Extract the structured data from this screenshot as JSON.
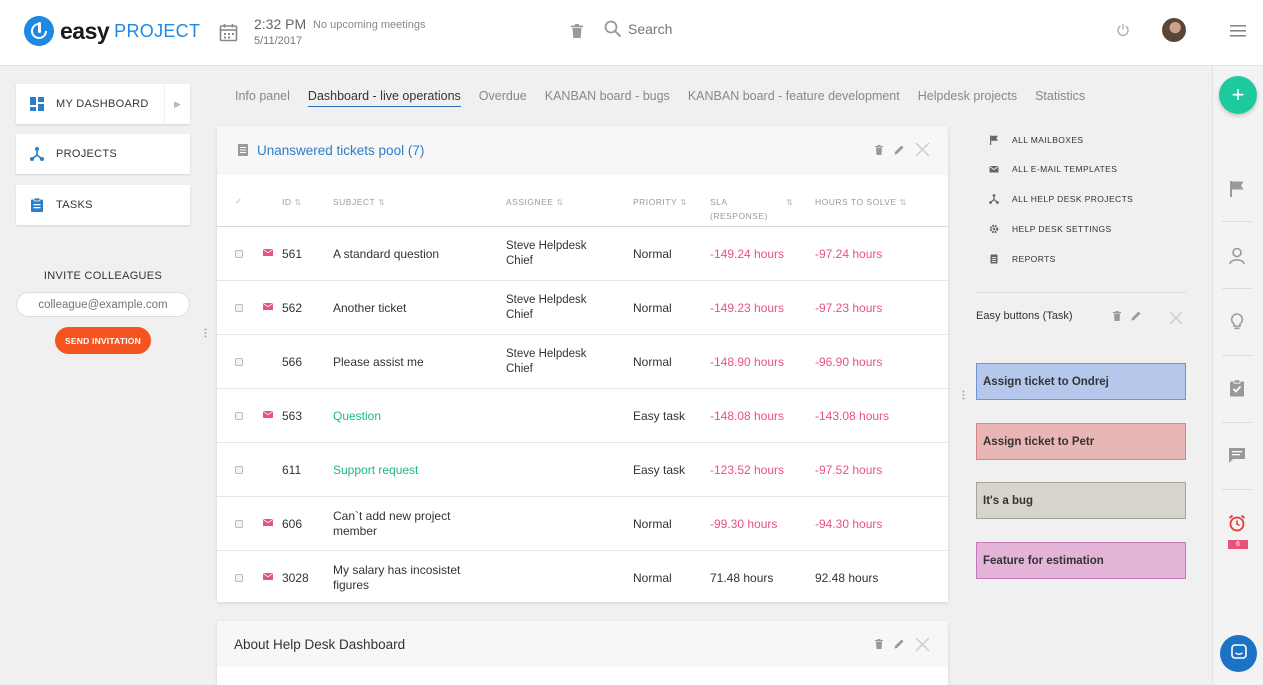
{
  "header": {
    "logo_easy": "easy",
    "logo_project": "PROJECT",
    "time": "2:32 PM",
    "date": "5/11/2017",
    "meetings": "No upcoming meetings",
    "search_placeholder": "Search"
  },
  "sidebar": {
    "items": [
      {
        "label": "MY DASHBOARD",
        "icon": "dashboard-icon"
      },
      {
        "label": "PROJECTS",
        "icon": "projects-icon"
      },
      {
        "label": "TASKS",
        "icon": "tasks-icon"
      }
    ],
    "invite_title": "INVITE COLLEAGUES",
    "invite_placeholder": "colleague@example.com",
    "send_label": "SEND INVITATION"
  },
  "tabs": [
    {
      "label": "Info panel",
      "active": false
    },
    {
      "label": "Dashboard - live operations",
      "active": true
    },
    {
      "label": "Overdue",
      "active": false
    },
    {
      "label": "KANBAN board - bugs",
      "active": false
    },
    {
      "label": "KANBAN board - feature development",
      "active": false
    },
    {
      "label": "Helpdesk projects",
      "active": false
    },
    {
      "label": "Statistics",
      "active": false
    }
  ],
  "tickets": {
    "title": "Unanswered tickets pool (7)",
    "columns": {
      "id": "ID",
      "subject": "SUBJECT",
      "assignee": "ASSIGNEE",
      "priority": "PRIORITY",
      "sla_line1": "SLA",
      "sla_line2": "(RESPONSE)",
      "hours": "HOURS TO SOLVE"
    },
    "rows": [
      {
        "mail": true,
        "id": "561",
        "subject1": "A standard question",
        "subject2": "",
        "link": false,
        "assignee1": "Steve Helpdesk",
        "assignee2": "Chief",
        "priority": "Normal",
        "sla": "-149.24 hours",
        "hours": "-97.24 hours",
        "neg": true
      },
      {
        "mail": true,
        "id": "562",
        "subject1": "Another ticket",
        "subject2": "",
        "link": false,
        "assignee1": "Steve Helpdesk",
        "assignee2": "Chief",
        "priority": "Normal",
        "sla": "-149.23 hours",
        "hours": "-97.23 hours",
        "neg": true
      },
      {
        "mail": false,
        "id": "566",
        "subject1": "Please assist me",
        "subject2": "",
        "link": false,
        "assignee1": "Steve Helpdesk",
        "assignee2": "Chief",
        "priority": "Normal",
        "sla": "-148.90 hours",
        "hours": "-96.90 hours",
        "neg": true
      },
      {
        "mail": true,
        "id": "563",
        "subject1": "Question",
        "subject2": "",
        "link": true,
        "assignee1": "",
        "assignee2": "",
        "priority": "Easy task",
        "sla": "-148.08 hours",
        "hours": "-143.08 hours",
        "neg": true
      },
      {
        "mail": false,
        "id": "611",
        "subject1": "Support request",
        "subject2": "",
        "link": true,
        "assignee1": "",
        "assignee2": "",
        "priority": "Easy task",
        "sla": "-123.52 hours",
        "hours": "-97.52 hours",
        "neg": true
      },
      {
        "mail": true,
        "id": "606",
        "subject1": "Can`t add new project",
        "subject2": "member",
        "link": false,
        "assignee1": "",
        "assignee2": "",
        "priority": "Normal",
        "sla": "-99.30 hours",
        "hours": "-94.30 hours",
        "neg": true
      },
      {
        "mail": true,
        "id": "3028",
        "subject1": "My salary has incosistet",
        "subject2": "figures",
        "link": false,
        "assignee1": "",
        "assignee2": "",
        "priority": "Normal",
        "sla": "71.48 hours",
        "hours": "92.48 hours",
        "neg": false
      }
    ]
  },
  "about": {
    "title": "About Help Desk Dashboard"
  },
  "right_links": [
    {
      "label": "ALL MAILBOXES",
      "icon": "flag-icon"
    },
    {
      "label": "ALL E-MAIL TEMPLATES",
      "icon": "envelope-icon"
    },
    {
      "label": "ALL HELP DESK PROJECTS",
      "icon": "projects-icon"
    },
    {
      "label": "HELP DESK SETTINGS",
      "icon": "gear-icon"
    },
    {
      "label": "REPORTS",
      "icon": "report-icon"
    }
  ],
  "easy_buttons": {
    "title": "Easy buttons (Task)",
    "buttons": [
      {
        "label": "Assign ticket to Ondrej",
        "bg": "#b5c8ec",
        "border": "#6f93d6"
      },
      {
        "label": "Assign ticket to Petr",
        "bg": "#e9b6b6",
        "border": "#d98585"
      },
      {
        "label": "It's a bug",
        "bg": "#d6d4cc",
        "border": "#a6a49a"
      },
      {
        "label": "Feature for estimation",
        "bg": "#e3b3d8",
        "border": "#c679b6"
      }
    ]
  },
  "rail": {
    "fab_label": "+",
    "badge": "6",
    "icons": [
      "flag-icon",
      "user-icon",
      "bulb-icon",
      "clipboard-icon",
      "comment-icon",
      "alarm-icon"
    ]
  },
  "colors": {
    "brand": "#1e88e5",
    "accent": "#f5531f",
    "link_green": "#1fb589",
    "negative": "#e8537b",
    "fab": "#1fc9a0"
  }
}
